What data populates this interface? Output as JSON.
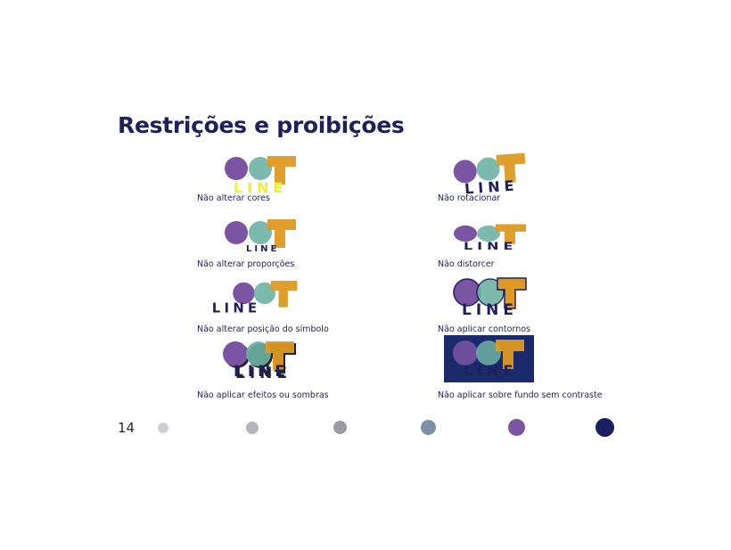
{
  "slide": {
    "title": "Restrições e proibições",
    "page_number": "14"
  },
  "logo": {
    "wordmark": "LINE",
    "colors": {
      "purple": "#7b55a4",
      "teal": "#6fb3a5",
      "orange": "#de9a22",
      "navy": "#1f1f5c",
      "yellow": "#f1ee2c"
    }
  },
  "rules": [
    {
      "caption": "Não alterar cores"
    },
    {
      "caption": "Não rotacionar"
    },
    {
      "caption": "Não alterar proporções"
    },
    {
      "caption": "Não distorcer"
    },
    {
      "caption": "Não alterar posição do símbolo"
    },
    {
      "caption": "Não aplicar contornos"
    },
    {
      "caption": "Não aplicar efeitos ou sombras"
    },
    {
      "caption": "Não aplicar sobre fundo sem contraste"
    }
  ],
  "palette_dots": [
    {
      "color": "#cfcfd8"
    },
    {
      "color": "#b4b4be"
    },
    {
      "color": "#9a9aa4"
    },
    {
      "color": "#7e8fa8"
    },
    {
      "color": "#7b55a4"
    },
    {
      "color": "#1b1f62"
    }
  ]
}
